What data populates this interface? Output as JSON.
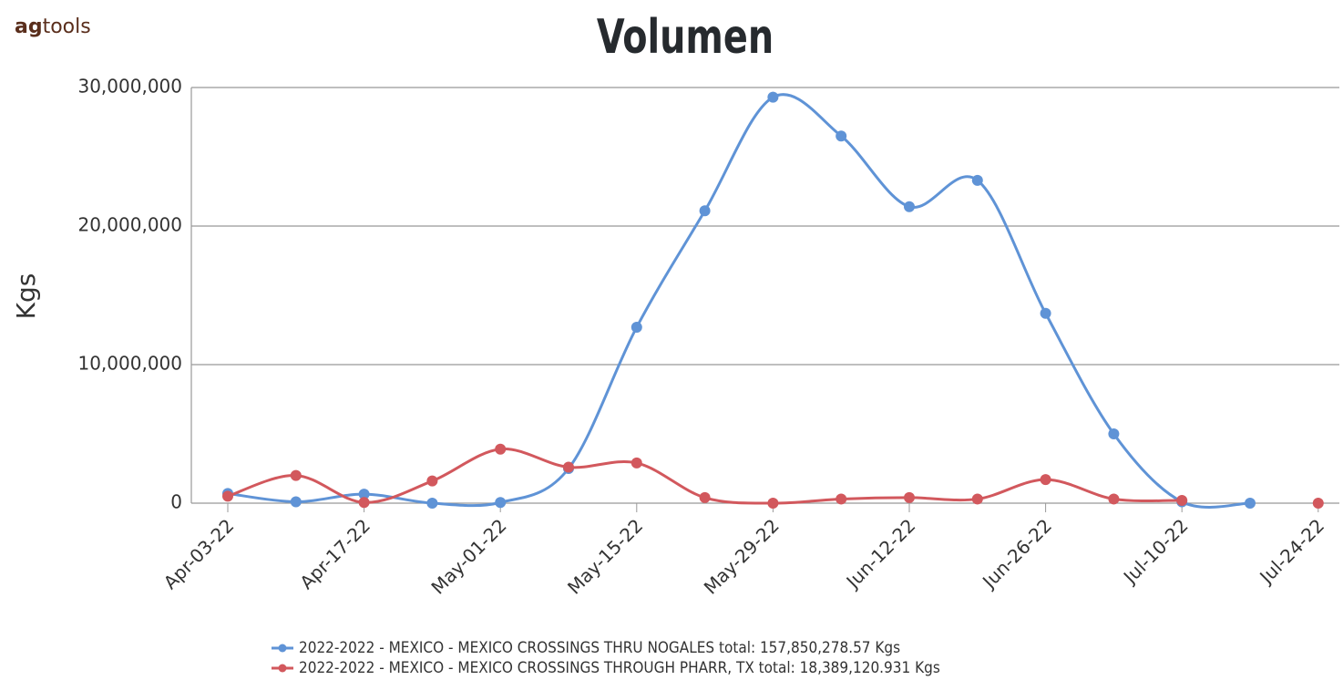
{
  "logo": {
    "bold": "ag",
    "rest": "tools"
  },
  "chart_data": {
    "type": "line",
    "title": "Volumen",
    "y_label": "Kgs",
    "categories": [
      "Apr-03-22",
      null,
      "Apr-17-22",
      null,
      "May-01-22",
      null,
      "May-15-22",
      null,
      "May-29-22",
      null,
      "Jun-12-22",
      null,
      "Jun-26-22",
      null,
      "Jul-10-22",
      null,
      "Jul-24-22"
    ],
    "series": [
      {
        "name": "2022-2022 - MEXICO - MEXICO CROSSINGS THRU NOGALES total: 157,850,278.57 Kgs",
        "color": "#5f93d6",
        "values": [
          700000,
          100000,
          650000,
          0,
          50000,
          2500000,
          12700000,
          21100000,
          29300000,
          26500000,
          21400000,
          23300000,
          13700000,
          5000000,
          100000,
          0,
          null
        ]
      },
      {
        "name": "2022-2022 - MEXICO - MEXICO CROSSINGS THROUGH PHARR, TX total: 18,389,120.931 Kgs",
        "color": "#d2585d",
        "values": [
          500000,
          2000000,
          50000,
          1600000,
          3900000,
          2600000,
          2900000,
          400000,
          0,
          300000,
          400000,
          300000,
          1700000,
          300000,
          200000,
          null,
          0
        ]
      }
    ],
    "ylim": [
      0,
      30000000
    ],
    "yticks": [
      0,
      {
        "value": 10000000,
        "label": "10,000,000"
      },
      {
        "value": 20000000,
        "label": "20,000,000"
      },
      {
        "value": 30000000,
        "label": "30,000,000"
      }
    ],
    "grid": true
  }
}
